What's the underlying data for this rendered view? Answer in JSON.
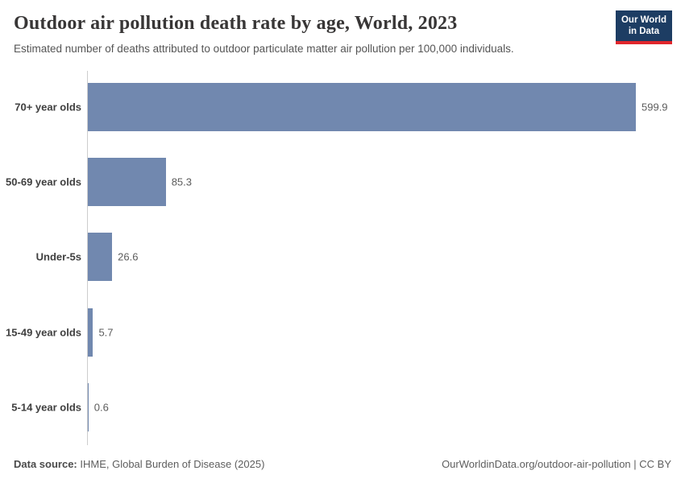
{
  "header": {
    "title": "Outdoor air pollution death rate by age, World, 2023",
    "subtitle": "Estimated number of deaths attributed to outdoor particulate matter air pollution per 100,000 individuals.",
    "logo": {
      "line1": "Our World",
      "line2": "in Data",
      "background_color": "#1d3d63",
      "accent_color": "#e0262c"
    }
  },
  "chart_data": {
    "type": "bar",
    "orientation": "horizontal",
    "title": "Outdoor air pollution death rate by age, World, 2023",
    "xlabel": "",
    "ylabel": "",
    "categories": [
      "70+ year olds",
      "50-69 year olds",
      "Under-5s",
      "15-49 year olds",
      "5-14 year olds"
    ],
    "values": [
      599.9,
      85.3,
      26.6,
      5.7,
      0.6
    ],
    "value_labels": [
      "599.9",
      "85.3",
      "26.6",
      "5.7",
      "0.6"
    ],
    "xlim": [
      0,
      599.9
    ],
    "grid": false,
    "legend": "none",
    "bar_color": "#7188af",
    "axis_color": "#cdcdcd",
    "category_label_color": "#3f3f3f",
    "value_label_color": "#5c5c5c"
  },
  "footer": {
    "source_label": "Data source:",
    "source_text": " IHME, Global Burden of Disease (2025)",
    "link_text": "OurWorldinData.org/outdoor-air-pollution | CC BY"
  }
}
